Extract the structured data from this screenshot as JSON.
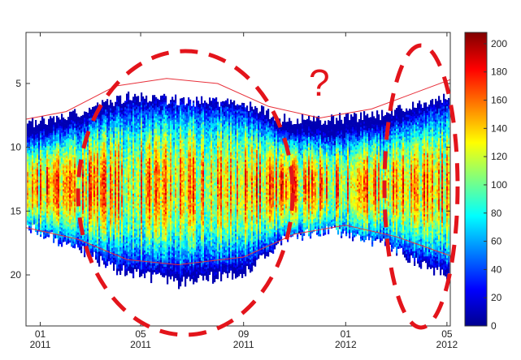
{
  "chart_data": {
    "type": "heatmap",
    "title": "",
    "xlabel": "",
    "ylabel": "",
    "x_ticks": [
      {
        "value": "2011-01",
        "line1": "01",
        "line2": "2011"
      },
      {
        "value": "2011-05",
        "line1": "05",
        "line2": "2011"
      },
      {
        "value": "2011-09",
        "line1": "09",
        "line2": "2011"
      },
      {
        "value": "2012-01",
        "line1": "01",
        "line2": "2012"
      },
      {
        "value": "2012-05",
        "line1": "05",
        "line2": "2012"
      }
    ],
    "xlim": [
      "2010-12-15",
      "2012-05-05"
    ],
    "y_ticks": [
      "5",
      "10",
      "15",
      "20"
    ],
    "ylim": [
      24,
      1
    ],
    "y_reversed": true,
    "colorbar": {
      "ticks": [
        "0",
        "20",
        "40",
        "60",
        "80",
        "100",
        "120",
        "140",
        "160",
        "180",
        "200"
      ],
      "range": [
        0,
        208
      ],
      "colormap": "jet"
    },
    "heatmap_envelope": {
      "description_free": true,
      "top": [
        {
          "x": "2010-12-15",
          "y": 8.0
        },
        {
          "x": "2011-01-15",
          "y": 8.0
        },
        {
          "x": "2011-03-01",
          "y": 7.0
        },
        {
          "x": "2011-04-15",
          "y": 6.0
        },
        {
          "x": "2011-06-15",
          "y": 6.3
        },
        {
          "x": "2011-09-01",
          "y": 6.6
        },
        {
          "x": "2011-10-15",
          "y": 7.8
        },
        {
          "x": "2011-12-15",
          "y": 7.8
        },
        {
          "x": "2012-02-15",
          "y": 7.4
        },
        {
          "x": "2012-05-05",
          "y": 6.0
        }
      ],
      "bottom": [
        {
          "x": "2010-12-15",
          "y": 16.2
        },
        {
          "x": "2011-02-15",
          "y": 17.8
        },
        {
          "x": "2011-04-01",
          "y": 19.5
        },
        {
          "x": "2011-06-15",
          "y": 20.5
        },
        {
          "x": "2011-09-01",
          "y": 19.8
        },
        {
          "x": "2011-10-15",
          "y": 17.2
        },
        {
          "x": "2011-12-15",
          "y": 16.4
        },
        {
          "x": "2012-02-15",
          "y": 17.5
        },
        {
          "x": "2012-04-01",
          "y": 19.2
        },
        {
          "x": "2012-05-05",
          "y": 20.0
        }
      ],
      "peak_y": 13,
      "peak_value": 170
    },
    "reference_lines": {
      "color": "#e8303a",
      "top": [
        {
          "x": "2010-12-15",
          "y": 7.8
        },
        {
          "x": "2011-02-01",
          "y": 7.2
        },
        {
          "x": "2011-04-01",
          "y": 5.2
        },
        {
          "x": "2011-06-01",
          "y": 4.6
        },
        {
          "x": "2011-08-01",
          "y": 5.0
        },
        {
          "x": "2011-10-01",
          "y": 6.8
        },
        {
          "x": "2011-12-01",
          "y": 7.7
        },
        {
          "x": "2012-02-01",
          "y": 7.0
        },
        {
          "x": "2012-05-05",
          "y": 4.7
        }
      ],
      "bottom": [
        {
          "x": "2010-12-15",
          "y": 16.3
        },
        {
          "x": "2011-02-15",
          "y": 17.2
        },
        {
          "x": "2011-04-15",
          "y": 18.8
        },
        {
          "x": "2011-06-15",
          "y": 19.2
        },
        {
          "x": "2011-09-01",
          "y": 18.6
        },
        {
          "x": "2011-11-01",
          "y": 16.8
        },
        {
          "x": "2012-01-01",
          "y": 16.1
        },
        {
          "x": "2012-03-01",
          "y": 17.0
        },
        {
          "x": "2012-05-05",
          "y": 18.5
        }
      ]
    },
    "annotations": {
      "color": "#e3141b",
      "question_mark": "?"
    }
  }
}
